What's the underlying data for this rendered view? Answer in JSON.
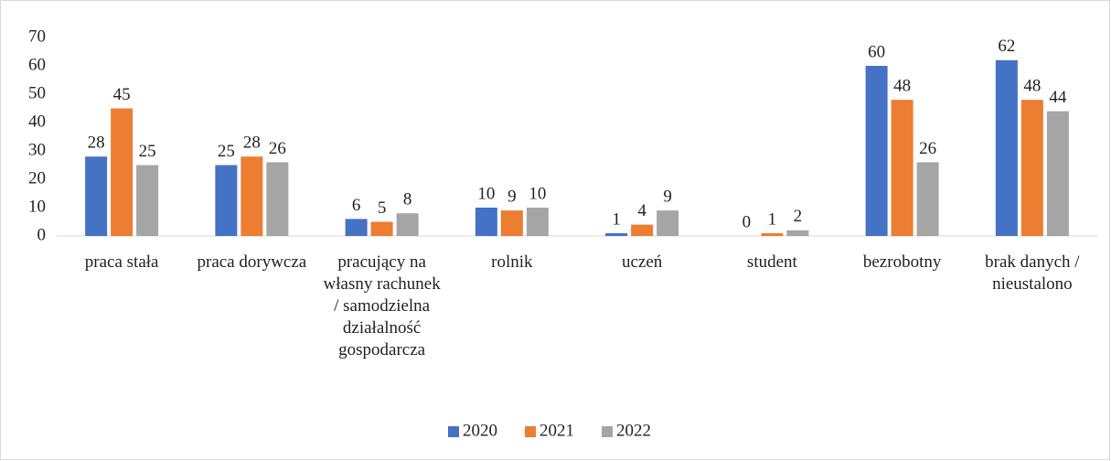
{
  "chart_data": {
    "type": "bar",
    "categories": [
      "praca stała",
      "praca dorywcza",
      "pracujący na własny rachunek / samodzielna działalność gospodarcza",
      "rolnik",
      "uczeń",
      "student",
      "bezrobotny",
      "brak danych / nieustalono"
    ],
    "series": [
      {
        "name": "2020",
        "color": "#4472c4",
        "values": [
          28,
          25,
          6,
          10,
          1,
          0,
          60,
          62
        ]
      },
      {
        "name": "2021",
        "color": "#ed7d31",
        "values": [
          45,
          28,
          5,
          9,
          4,
          1,
          48,
          48
        ]
      },
      {
        "name": "2022",
        "color": "#a5a5a5",
        "values": [
          25,
          26,
          8,
          10,
          9,
          2,
          26,
          44
        ]
      }
    ],
    "ylim": [
      0,
      70
    ],
    "yticks": [
      0,
      10,
      20,
      30,
      40,
      50,
      60,
      70
    ],
    "grid": false,
    "legend": "bottom"
  }
}
